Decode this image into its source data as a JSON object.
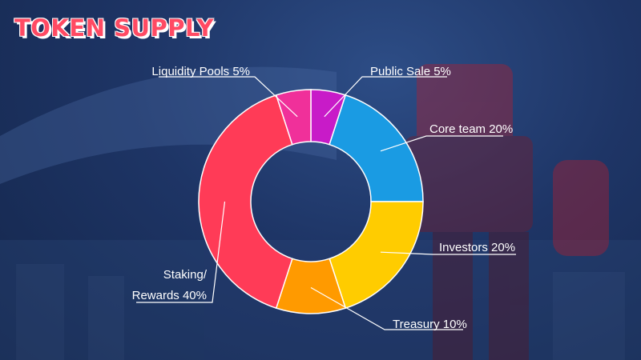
{
  "title": "TOKEN SUPPLY",
  "chart_data": {
    "type": "pie",
    "donut": true,
    "title": "TOKEN SUPPLY",
    "slices": [
      {
        "label": "Public Sale 5%",
        "value": 5,
        "color": "#c81bc8"
      },
      {
        "label": "Core team 20%",
        "value": 20,
        "color": "#1a9be3"
      },
      {
        "label": "Investors 20%",
        "value": 20,
        "color": "#ffcc00"
      },
      {
        "label": "Treasury 10%",
        "value": 10,
        "color": "#ff9a00"
      },
      {
        "label": "Staking/ Rewards 40%",
        "lines": [
          "Staking/",
          "Rewards 40%"
        ],
        "value": 40,
        "color": "#ff3b57"
      },
      {
        "label": "Liquidity Pools 5%",
        "value": 5,
        "color": "#f0309a"
      }
    ],
    "colors": {
      "title": "#ff4a63",
      "background": "#1e3566"
    }
  }
}
